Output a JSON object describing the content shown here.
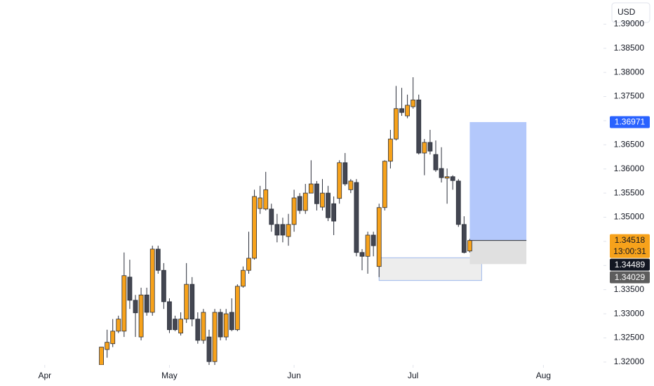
{
  "chart_data": {
    "type": "candlestick",
    "currency": "USD",
    "x": [
      10,
      11,
      12,
      13,
      14,
      15,
      16,
      17,
      18,
      19,
      20,
      21,
      22,
      23,
      24,
      25,
      26,
      27,
      28,
      29,
      30,
      31,
      32,
      33,
      34,
      35,
      36,
      37,
      38,
      39,
      40,
      41,
      42,
      43,
      44,
      45,
      46,
      47,
      48,
      49,
      50,
      51,
      52,
      53,
      54,
      55,
      56,
      57,
      58,
      59,
      60,
      61,
      62,
      63,
      64,
      65,
      66,
      67,
      68,
      69,
      70,
      71,
      72,
      73,
      74,
      75
    ],
    "open": [
      1.3194,
      1.3226,
      1.3238,
      1.3264,
      1.3264,
      1.3376,
      1.3328,
      1.3252,
      1.3339,
      1.3303,
      1.3434,
      1.339,
      1.3325,
      1.3289,
      1.326,
      1.3289,
      1.3361,
      1.3289,
      1.3245,
      1.3252,
      1.3201,
      1.3303,
      1.3252,
      1.3303,
      1.3267,
      1.3357,
      1.339,
      1.3415,
      1.3518,
      1.3517,
      1.3517,
      1.3485,
      1.3485,
      1.346,
      1.3485,
      1.3543,
      1.3514,
      1.355,
      1.3569,
      1.3521,
      1.355,
      1.3528,
      1.3539,
      1.3613,
      1.3557,
      1.3572,
      1.3427,
      1.3419,
      1.3463,
      1.3398,
      1.352,
      1.3616,
      1.3662,
      1.3725,
      1.371,
      1.3729,
      1.3743,
      1.3633,
      1.3655,
      1.363,
      1.3601,
      1.3581,
      1.3584,
      1.3575,
      1.3485,
      1.343
    ],
    "high": [
      1.3231,
      1.3267,
      1.3289,
      1.3296,
      1.3427,
      1.3412,
      1.3339,
      1.3354,
      1.3354,
      1.3441,
      1.3441,
      1.3405,
      1.3332,
      1.3296,
      1.3303,
      1.3405,
      1.3376,
      1.3303,
      1.331,
      1.3267,
      1.331,
      1.331,
      1.331,
      1.3332,
      1.3361,
      1.3398,
      1.347,
      1.3557,
      1.3565,
      1.3594,
      1.3528,
      1.3507,
      1.3499,
      1.3507,
      1.3557,
      1.355,
      1.3569,
      1.3618,
      1.3575,
      1.3579,
      1.3565,
      1.3543,
      1.3618,
      1.3633,
      1.3579,
      1.3579,
      1.3434,
      1.347,
      1.347,
      1.3528,
      1.3618,
      1.3681,
      1.3772,
      1.3768,
      1.3754,
      1.379,
      1.3754,
      1.3662,
      1.3681,
      1.3659,
      1.3645,
      1.3601,
      1.3587,
      1.3579,
      1.3502,
      1.3455
    ],
    "low": [
      1.3194,
      1.3209,
      1.3231,
      1.326,
      1.3252,
      1.331,
      1.3252,
      1.3245,
      1.3296,
      1.3296,
      1.3383,
      1.331,
      1.326,
      1.3264,
      1.3255,
      1.3281,
      1.3274,
      1.3238,
      1.3238,
      1.3194,
      1.3194,
      1.3245,
      1.3245,
      1.3264,
      1.3264,
      1.3354,
      1.3383,
      1.3412,
      1.3507,
      1.3514,
      1.347,
      1.3448,
      1.3448,
      1.3441,
      1.347,
      1.3507,
      1.3507,
      1.355,
      1.3514,
      1.3514,
      1.3492,
      1.3463,
      1.3528,
      1.3565,
      1.355,
      1.3419,
      1.339,
      1.3383,
      1.3419,
      1.3376,
      1.3514,
      1.3601,
      1.3659,
      1.371,
      1.3705,
      1.3725,
      1.363,
      1.3587,
      1.363,
      1.3594,
      1.3572,
      1.3528,
      1.3557,
      1.348,
      1.3425,
      1.3427
    ],
    "close": [
      1.3231,
      1.3241,
      1.3264,
      1.3289,
      1.3379,
      1.3328,
      1.3302,
      1.3339,
      1.3303,
      1.3434,
      1.339,
      1.3325,
      1.3267,
      1.3267,
      1.3289,
      1.3361,
      1.3289,
      1.3245,
      1.3303,
      1.3201,
      1.3303,
      1.3252,
      1.33,
      1.3267,
      1.3357,
      1.339,
      1.3415,
      1.3543,
      1.354,
      1.3557,
      1.3485,
      1.3463,
      1.3463,
      1.3485,
      1.354,
      1.3514,
      1.355,
      1.3569,
      1.3528,
      1.355,
      1.3499,
      1.3492,
      1.3613,
      1.3569,
      1.3575,
      1.3427,
      1.3419,
      1.3463,
      1.3441,
      1.352,
      1.3616,
      1.3662,
      1.3725,
      1.3717,
      1.3732,
      1.3743,
      1.3633,
      1.3655,
      1.3637,
      1.3598,
      1.3582,
      1.3584,
      1.3576,
      1.3485,
      1.3427,
      1.34518
    ],
    "up_color": "#f7a21b",
    "down_color": "#434651",
    "xlim": [
      -7.9,
      98.6
    ],
    "xticks": [
      {
        "value": 0,
        "label": "Apr"
      },
      {
        "value": 22,
        "label": "May"
      },
      {
        "value": 44,
        "label": "Jun"
      },
      {
        "value": 65,
        "label": "Jul"
      },
      {
        "value": 88,
        "label": "Aug"
      }
    ],
    "ylim": [
      1.3194,
      1.395
    ],
    "yticks": [
      {
        "value": 1.32,
        "label": "1.32000"
      },
      {
        "value": 1.325,
        "label": "1.32500"
      },
      {
        "value": 1.33,
        "label": "1.33000"
      },
      {
        "value": 1.335,
        "label": "1.33500"
      },
      {
        "value": 1.34,
        "label": "1.34000"
      },
      {
        "value": 1.345,
        "label": "1.34500"
      },
      {
        "value": 1.35,
        "label": "1.35000"
      },
      {
        "value": 1.355,
        "label": "1.35500"
      },
      {
        "value": 1.36,
        "label": "1.36000"
      },
      {
        "value": 1.365,
        "label": "1.36500"
      },
      {
        "value": 1.37,
        "label": "1.37000"
      },
      {
        "value": 1.375,
        "label": "1.37500"
      },
      {
        "value": 1.38,
        "label": "1.38000"
      },
      {
        "value": 1.385,
        "label": "1.38500"
      },
      {
        "value": 1.39,
        "label": "1.39000"
      }
    ],
    "position": {
      "entry": 1.34518,
      "target": 1.36971,
      "stop": 1.34029,
      "x": [
        75,
        85
      ],
      "profit_color": "#b3c8fb",
      "loss_color": "#e0e0e0",
      "target_label_color": "#2962ff",
      "entry_label_color": "#f7a21b",
      "stop_label_color": "#5d5d5d"
    },
    "countdown": "13:00:31",
    "marker_price": 1.34489,
    "marker_color": "#131722",
    "zone": {
      "low": 1.3369,
      "high": 1.3416,
      "x": [
        59,
        77.1
      ],
      "color": "#e6e6e6",
      "border": "#9db8ec"
    }
  }
}
